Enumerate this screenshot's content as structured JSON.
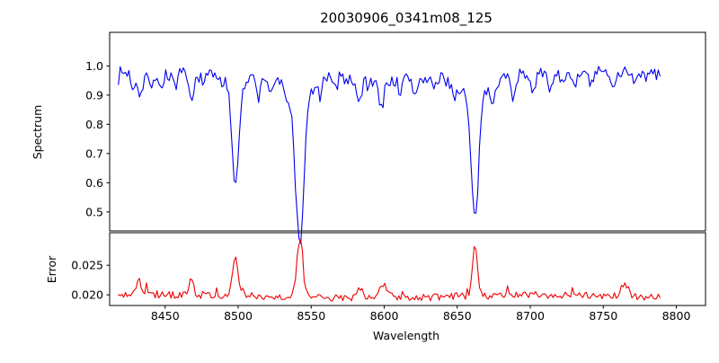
{
  "title": "20030906_0341m08_125",
  "xlabel": "Wavelength",
  "seed": 7,
  "chart_data": [
    {
      "type": "line",
      "name": "spectrum",
      "ylabel": "Spectrum",
      "color": "#0000ee",
      "xlim": [
        8412,
        8820
      ],
      "ylim": [
        0.435,
        1.115
      ],
      "x_data_range": [
        8418,
        8790
      ],
      "x_ticks": [
        {
          "v": 8450,
          "label": "8450"
        },
        {
          "v": 8500,
          "label": "8500"
        },
        {
          "v": 8550,
          "label": "8550"
        },
        {
          "v": 8600,
          "label": "8600"
        },
        {
          "v": 8650,
          "label": "8650"
        },
        {
          "v": 8700,
          "label": "8700"
        },
        {
          "v": 8750,
          "label": "8750"
        },
        {
          "v": 8800,
          "label": "8800"
        }
      ],
      "y_ticks": [
        {
          "v": 0.5,
          "label": "0.5"
        },
        {
          "v": 0.6,
          "label": "0.6"
        },
        {
          "v": 0.7,
          "label": "0.7"
        },
        {
          "v": 0.8,
          "label": "0.8"
        },
        {
          "v": 0.9,
          "label": "0.9"
        },
        {
          "v": 1.0,
          "label": "1.0"
        }
      ],
      "continuum": 0.965,
      "noise_amplitude": 0.045,
      "absorption_lines": [
        {
          "center": 8498.0,
          "depth": 0.33,
          "sigma": 2.2
        },
        {
          "center": 8542.1,
          "depth": 0.5,
          "sigma": 2.8
        },
        {
          "center": 8662.1,
          "depth": 0.42,
          "sigma": 2.5
        }
      ],
      "minor_lines": [
        {
          "center": 8428,
          "depth": 0.05,
          "sigma": 1.2
        },
        {
          "center": 8433,
          "depth": 0.07,
          "sigma": 1.5
        },
        {
          "center": 8440,
          "depth": 0.04,
          "sigma": 1.2
        },
        {
          "center": 8447,
          "depth": 0.05,
          "sigma": 1.3
        },
        {
          "center": 8457,
          "depth": 0.04,
          "sigma": 1.2
        },
        {
          "center": 8468,
          "depth": 0.1,
          "sigma": 1.8
        },
        {
          "center": 8476,
          "depth": 0.05,
          "sigma": 1.3
        },
        {
          "center": 8489,
          "depth": 0.04,
          "sigma": 1.2
        },
        {
          "center": 8514,
          "depth": 0.07,
          "sigma": 1.5
        },
        {
          "center": 8522,
          "depth": 0.05,
          "sigma": 1.3
        },
        {
          "center": 8533,
          "depth": 0.04,
          "sigma": 1.2
        },
        {
          "center": 8556,
          "depth": 0.05,
          "sigma": 1.3
        },
        {
          "center": 8565,
          "depth": 0.04,
          "sigma": 1.2
        },
        {
          "center": 8583,
          "depth": 0.07,
          "sigma": 1.6
        },
        {
          "center": 8598,
          "depth": 0.09,
          "sigma": 1.8
        },
        {
          "center": 8611,
          "depth": 0.05,
          "sigma": 1.3
        },
        {
          "center": 8621,
          "depth": 0.06,
          "sigma": 1.4
        },
        {
          "center": 8634,
          "depth": 0.04,
          "sigma": 1.2
        },
        {
          "center": 8648,
          "depth": 0.05,
          "sigma": 1.3
        },
        {
          "center": 8674,
          "depth": 0.06,
          "sigma": 1.4
        },
        {
          "center": 8688,
          "depth": 0.07,
          "sigma": 1.5
        },
        {
          "center": 8702,
          "depth": 0.05,
          "sigma": 1.3
        },
        {
          "center": 8713,
          "depth": 0.05,
          "sigma": 1.3
        },
        {
          "center": 8730,
          "depth": 0.05,
          "sigma": 1.3
        },
        {
          "center": 8742,
          "depth": 0.04,
          "sigma": 1.2
        },
        {
          "center": 8757,
          "depth": 0.05,
          "sigma": 1.3
        },
        {
          "center": 8772,
          "depth": 0.04,
          "sigma": 1.2
        },
        {
          "center": 8498,
          "depth": 0.05,
          "sigma": 7
        },
        {
          "center": 8542,
          "depth": 0.08,
          "sigma": 9
        },
        {
          "center": 8662,
          "depth": 0.06,
          "sigma": 8
        }
      ]
    },
    {
      "type": "line",
      "name": "error",
      "ylabel": "Error",
      "color": "#ee0000",
      "xlim": [
        8412,
        8820
      ],
      "ylim": [
        0.0182,
        0.0305
      ],
      "x_data_range": [
        8418,
        8790
      ],
      "y_ticks": [
        {
          "v": 0.02,
          "label": "0.020"
        },
        {
          "v": 0.025,
          "label": "0.025"
        }
      ],
      "baseline": 0.0197,
      "noise_amplitude": 0.0012,
      "peaks": [
        {
          "center": 8432,
          "height": 0.003,
          "sigma": 1.5
        },
        {
          "center": 8468,
          "height": 0.0026,
          "sigma": 1.5
        },
        {
          "center": 8498,
          "height": 0.0062,
          "sigma": 1.8
        },
        {
          "center": 8542.1,
          "height": 0.0098,
          "sigma": 2.0
        },
        {
          "center": 8583,
          "height": 0.0018,
          "sigma": 2.5
        },
        {
          "center": 8600,
          "height": 0.0022,
          "sigma": 3.0
        },
        {
          "center": 8662.1,
          "height": 0.0088,
          "sigma": 1.8
        },
        {
          "center": 8765,
          "height": 0.0022,
          "sigma": 2.0
        }
      ]
    }
  ]
}
